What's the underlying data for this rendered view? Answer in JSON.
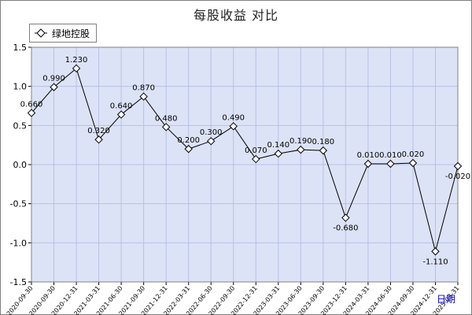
{
  "chart_data": {
    "type": "line",
    "title": "每股收益  对比",
    "xlabel": "日期",
    "ylabel": "",
    "ylim": [
      -1.5,
      1.5
    ],
    "yticks": [
      "1.5",
      "1.0",
      "0.5",
      "0.0",
      "-0.5",
      "-1.0",
      "-1.5"
    ],
    "grid": true,
    "legend": "top-left",
    "categories": [
      "2020-09-30",
      "2020-09-30",
      "2020-12-31",
      "2021-03-31",
      "2021-06-30",
      "2021-09-30",
      "2021-12-31",
      "2022-03-31",
      "2022-06-30",
      "2022-09-30",
      "2022-12-31",
      "2023-03-31",
      "2023-06-30",
      "2023-09-30",
      "2023-12-31",
      "2024-03-31",
      "2024-06-30",
      "2024-09-30",
      "2024-12-31",
      "2025-03-31"
    ],
    "series": [
      {
        "name": "绿地控股",
        "values": [
          0.66,
          0.99,
          1.23,
          0.32,
          0.64,
          0.87,
          0.48,
          0.2,
          0.3,
          0.49,
          0.07,
          0.14,
          0.19,
          0.18,
          -0.68,
          0.01,
          0.01,
          0.02,
          -1.11,
          -0.02
        ],
        "labels": [
          "0.660",
          "0.990",
          "1.230",
          "0.320",
          "0.640",
          "0.870",
          "0.480",
          "0.200",
          "0.300",
          "0.490",
          "0.070",
          "0.140",
          "0.190",
          "0.180",
          "-0.680",
          "0.010",
          "0.010",
          "0.020",
          "-1.110",
          "-0.020"
        ]
      }
    ],
    "colors": {
      "plot_bg": "#dde3f7",
      "grid": "#b6c0e6",
      "line": "#000000",
      "axis_text": "#000000"
    }
  }
}
